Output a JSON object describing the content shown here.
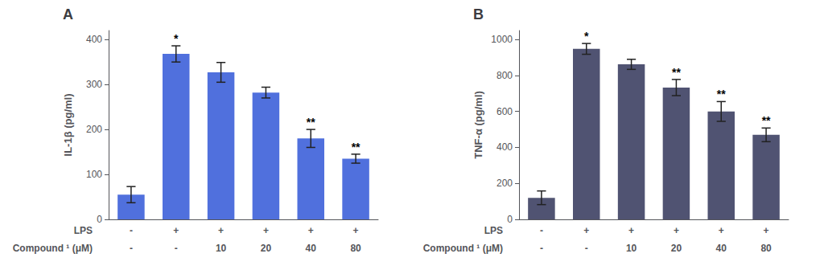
{
  "chart_data": [
    {
      "type": "bar",
      "title": "A",
      "ylabel": "IL-1β (pg/ml)",
      "category_rows": [
        {
          "name": "LPS",
          "labels": [
            "-",
            "+",
            "+",
            "+",
            "+",
            "+"
          ]
        },
        {
          "name": "Compound ¹ (μM)",
          "labels": [
            "-",
            "-",
            "10",
            "20",
            "40",
            "80"
          ]
        }
      ],
      "values": [
        55,
        368,
        327,
        282,
        180,
        135
      ],
      "errors": [
        18,
        18,
        22,
        12,
        20,
        10
      ],
      "significance": [
        null,
        "*",
        null,
        null,
        "**",
        "**"
      ],
      "ylim": [
        0,
        420
      ],
      "yticks": [
        0,
        100,
        200,
        300,
        400
      ],
      "grid": false
    },
    {
      "type": "bar",
      "title": "B",
      "ylabel": "TNF-α (pg/ml)",
      "category_rows": [
        {
          "name": "LPS",
          "labels": [
            "-",
            "+",
            "+",
            "+",
            "+",
            "+"
          ]
        },
        {
          "name": "Compound ¹ (μM)",
          "labels": [
            "-",
            "-",
            "10",
            "20",
            "40",
            "80"
          ]
        }
      ],
      "values": [
        120,
        948,
        862,
        733,
        600,
        470
      ],
      "errors": [
        38,
        30,
        28,
        45,
        55,
        38
      ],
      "significance": [
        null,
        "*",
        null,
        "**",
        "**",
        "**"
      ],
      "ylim": [
        0,
        1050
      ],
      "yticks": [
        0,
        200,
        400,
        600,
        800,
        1000
      ],
      "grid": false
    }
  ]
}
